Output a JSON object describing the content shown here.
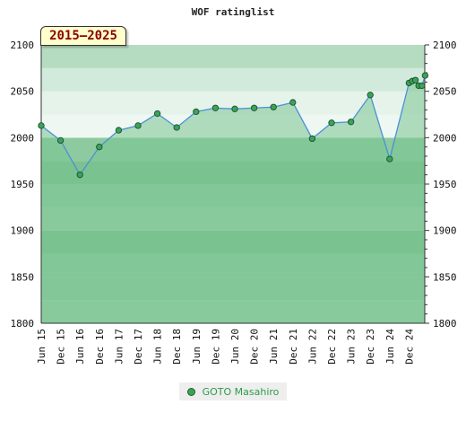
{
  "chart_data": {
    "type": "line",
    "title": "WOF ratinglist",
    "period_label": "2015–2025",
    "ylim": [
      1800,
      2100
    ],
    "y_ticks": [
      1800,
      1850,
      1900,
      1950,
      2000,
      2050,
      2100
    ],
    "x_tick_labels": [
      "Jun 15",
      "Dec 15",
      "Jun 16",
      "Dec 16",
      "Jun 17",
      "Dec 17",
      "Jun 18",
      "Dec 18",
      "Jun 19",
      "Dec 19",
      "Jun 20",
      "Dec 20",
      "Jun 21",
      "Dec 21",
      "Jun 22",
      "Dec 22",
      "Jun 23",
      "Dec 23",
      "Jun 24",
      "Dec 24"
    ],
    "series": [
      {
        "name": "GOTO Masahiro",
        "x": [
          "2015-06",
          "2015-12",
          "2016-06",
          "2016-12",
          "2017-06",
          "2017-12",
          "2018-06",
          "2018-12",
          "2019-06",
          "2019-12",
          "2020-06",
          "2020-12",
          "2021-06",
          "2021-12",
          "2022-06",
          "2022-12",
          "2023-06",
          "2023-12",
          "2024-06",
          "2024-12",
          "2025-01",
          "2025-02",
          "2025-03",
          "2025-04",
          "2025-05"
        ],
        "values": [
          2013,
          1997,
          1960,
          1990,
          2008,
          2013,
          2026,
          2011,
          2028,
          2032,
          2031,
          2032,
          2033,
          2038,
          1999,
          2016,
          2017,
          2046,
          1977,
          2059,
          2061,
          2062,
          2056,
          2056,
          2067
        ]
      }
    ],
    "legend": {
      "position": "bottom-center"
    },
    "colors": {
      "line": "#4a90d9",
      "marker": "#3aa35a",
      "area": "#78c48f"
    }
  }
}
